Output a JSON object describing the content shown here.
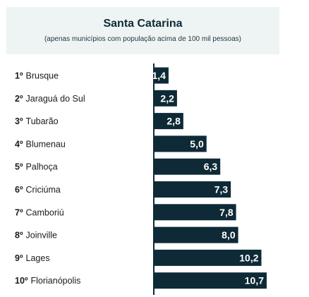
{
  "header": {
    "title": "Santa Catarina",
    "subtitle": "(apenas municípios com população acima de 100 mil pessoas)"
  },
  "colors": {
    "bar": "#0e2a36",
    "header_bg": "#eef4f3",
    "axis": "#0e2a36"
  },
  "chart_data": {
    "type": "bar",
    "orientation": "horizontal",
    "title": "Santa Catarina",
    "subtitle": "(apenas municípios com população acima de 100 mil pessoas)",
    "ranks": [
      "1º",
      "2º",
      "3º",
      "4º",
      "5º",
      "6º",
      "7º",
      "8º",
      "9º",
      "10º"
    ],
    "categories": [
      "Brusque",
      "Jaraguá do Sul",
      "Tubarão",
      "Blumenau",
      "Palhoça",
      "Criciúma",
      "Camboriú",
      "Joinville",
      "Lages",
      "Florianópolis"
    ],
    "values": [
      1.4,
      2.2,
      2.8,
      5.0,
      6.3,
      7.3,
      7.8,
      8.0,
      10.2,
      10.7
    ],
    "value_labels": [
      "1,4",
      "2,2",
      "2,8",
      "5,0",
      "6,3",
      "7,3",
      "7,8",
      "8,0",
      "10,2",
      "10,7"
    ],
    "xlim": [
      0,
      10.7
    ],
    "grid": false,
    "legend": "none"
  }
}
